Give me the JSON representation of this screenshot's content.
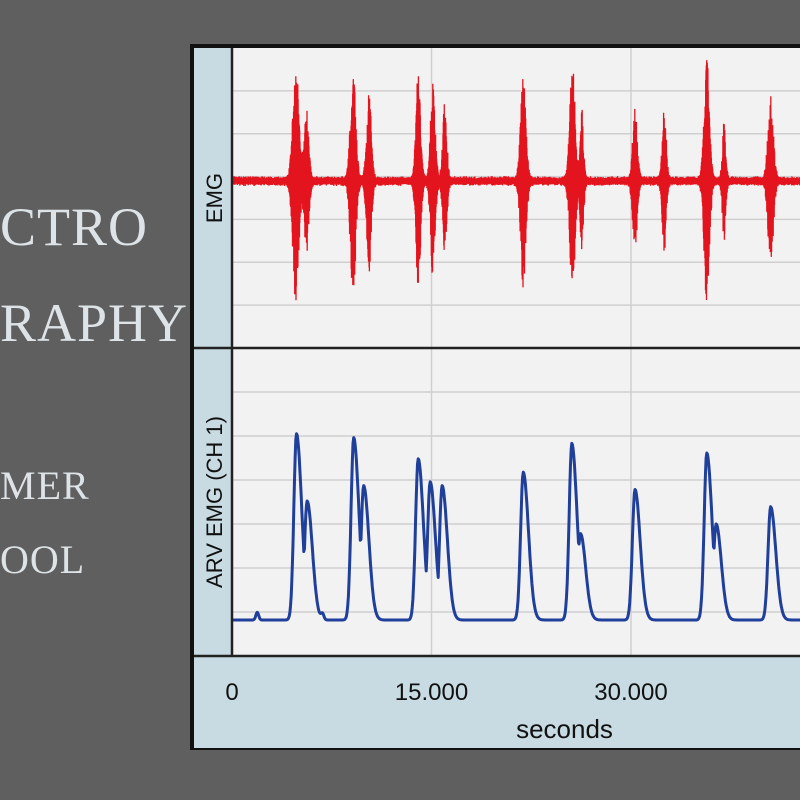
{
  "side_text": {
    "line1": "CTRO",
    "line2": "RAPHY",
    "line3": "MER",
    "line4": "OOL"
  },
  "colors": {
    "background": "#5f5f5f",
    "side_text": "#dde3e6",
    "panel_bg": "#f2f2f2",
    "label_strip": "#c8dbe3",
    "emg_trace": "#e3141e",
    "arv_trace": "#1f3f9a",
    "grid": "#cfcfcf"
  },
  "chart_data": {
    "type": "line",
    "xlabel": "seconds",
    "x_ticks": [
      "0",
      "15.000",
      "30.000"
    ],
    "x_tick_values": [
      0,
      15,
      30
    ],
    "xlim": [
      0,
      42
    ],
    "grid": true,
    "panels": [
      {
        "name": "EMG",
        "ylabel": "EMG",
        "color": "#e3141e",
        "style": "burst",
        "bursts": [
          {
            "t": 4.8,
            "amp": 0.95,
            "dur": 0.9
          },
          {
            "t": 5.6,
            "amp": 0.55,
            "dur": 0.7
          },
          {
            "t": 9.1,
            "amp": 0.9,
            "dur": 0.8
          },
          {
            "t": 10.3,
            "amp": 0.7,
            "dur": 0.7
          },
          {
            "t": 14.0,
            "amp": 0.82,
            "dur": 0.7
          },
          {
            "t": 15.1,
            "amp": 0.75,
            "dur": 0.7
          },
          {
            "t": 16.0,
            "amp": 0.6,
            "dur": 0.6
          },
          {
            "t": 21.9,
            "amp": 0.82,
            "dur": 0.8
          },
          {
            "t": 25.6,
            "amp": 0.9,
            "dur": 0.8
          },
          {
            "t": 26.3,
            "amp": 0.55,
            "dur": 0.5
          },
          {
            "t": 30.3,
            "amp": 0.55,
            "dur": 0.7
          },
          {
            "t": 32.5,
            "amp": 0.55,
            "dur": 0.6
          },
          {
            "t": 35.7,
            "amp": 0.95,
            "dur": 0.8
          },
          {
            "t": 37.0,
            "amp": 0.45,
            "dur": 0.5
          },
          {
            "t": 40.5,
            "amp": 0.65,
            "dur": 0.8
          }
        ],
        "baseline_noise": 0.04
      },
      {
        "name": "ARV EMG (CH 1)",
        "ylabel": "ARV EMG (CH 1)",
        "color": "#1f3f9a",
        "style": "envelope",
        "peaks": [
          {
            "t": 4.85,
            "amp": 0.97
          },
          {
            "t": 5.65,
            "amp": 0.62
          },
          {
            "t": 9.15,
            "amp": 0.95
          },
          {
            "t": 9.9,
            "amp": 0.7
          },
          {
            "t": 14.0,
            "amp": 0.84
          },
          {
            "t": 14.9,
            "amp": 0.72
          },
          {
            "t": 15.8,
            "amp": 0.7
          },
          {
            "t": 21.9,
            "amp": 0.77
          },
          {
            "t": 25.55,
            "amp": 0.92
          },
          {
            "t": 26.2,
            "amp": 0.45
          },
          {
            "t": 30.3,
            "amp": 0.68
          },
          {
            "t": 35.7,
            "amp": 0.87
          },
          {
            "t": 36.4,
            "amp": 0.5
          },
          {
            "t": 40.5,
            "amp": 0.59
          }
        ],
        "baseline": 0.02,
        "small_bumps": [
          {
            "t": 1.9,
            "amp": 0.04
          },
          {
            "t": 6.8,
            "amp": 0.03
          }
        ]
      }
    ]
  }
}
